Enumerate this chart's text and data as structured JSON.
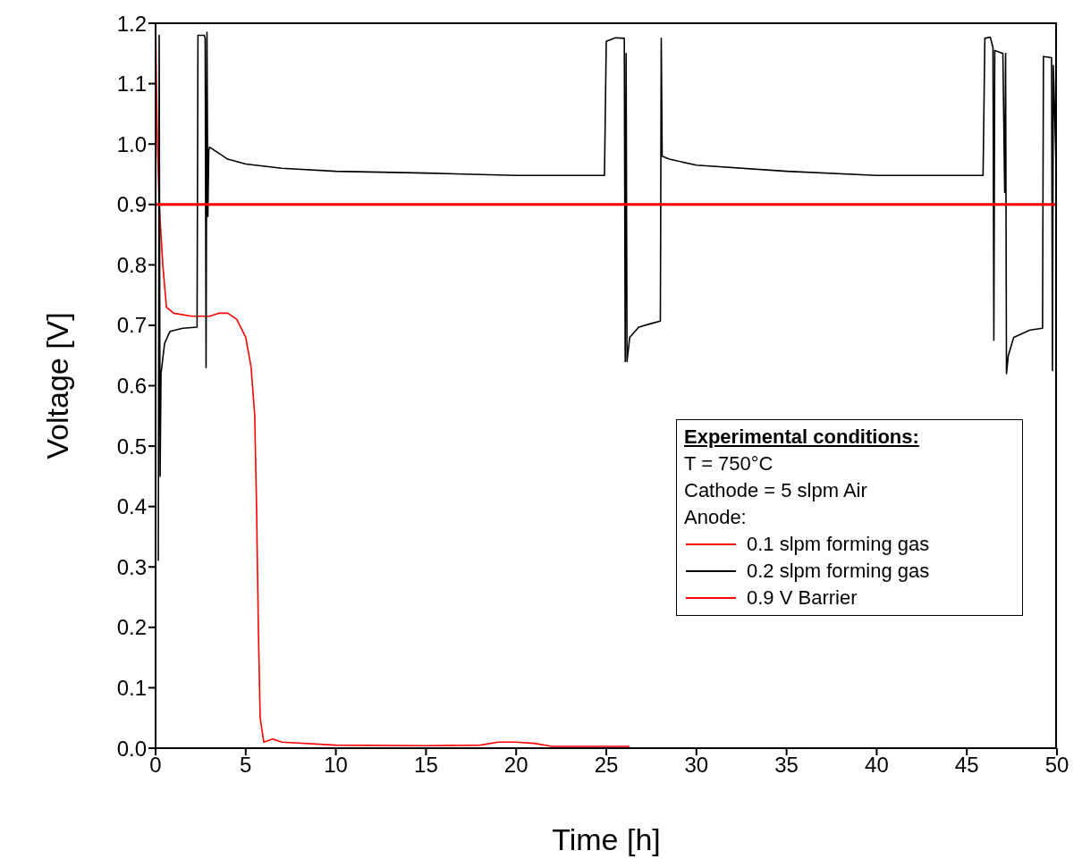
{
  "chart_data": {
    "type": "line",
    "xlabel": "Time [h]",
    "ylabel": "Voltage [V]",
    "legend_title": "Experimental conditions:",
    "annotations": [
      "T = 750°C",
      "Cathode = 5 slpm Air",
      "Anode:"
    ],
    "xlim": [
      0,
      50
    ],
    "xticks": [
      0,
      5,
      10,
      15,
      20,
      25,
      30,
      35,
      40,
      45,
      50
    ],
    "ylim": [
      0,
      1.2
    ],
    "yticks": [
      {
        "value": 0,
        "label": "0.0"
      },
      0.1,
      0.2,
      0.3,
      0.4,
      0.5,
      0.6,
      0.7,
      0.8,
      0.9,
      {
        "value": 1,
        "label": "1.0"
      },
      1.1,
      1.2
    ],
    "legend": "right",
    "marker": "none",
    "line_style": "solid",
    "series": [
      {
        "name": "0.1 slpm forming gas",
        "color": "#ff0000",
        "x": [
          0,
          0.1,
          0.2,
          0.4,
          0.6,
          1,
          2,
          3,
          3.5,
          4,
          4.5,
          5,
          5.3,
          5.5,
          5.6,
          5.7,
          5.8,
          6,
          6.5,
          7,
          10,
          15,
          18,
          19,
          20,
          21,
          22,
          26.3
        ],
        "values": [
          1.2,
          1.0,
          0.9,
          0.8,
          0.73,
          0.72,
          0.715,
          0.715,
          0.72,
          0.72,
          0.71,
          0.68,
          0.63,
          0.55,
          0.4,
          0.2,
          0.05,
          0.01,
          0.015,
          0.01,
          0.005,
          0.004,
          0.005,
          0.01,
          0.01,
          0.008,
          0.003,
          0.003
        ]
      },
      {
        "name": "0.2 slpm forming gas",
        "color": "#000000",
        "x": [
          0.15,
          0.2,
          0.25,
          0.3,
          0.5,
          0.8,
          1.5,
          2.3,
          2.35,
          2.7,
          2.75,
          2.8,
          2.85,
          2.9,
          2.95,
          3,
          4,
          5,
          7,
          10,
          15,
          20,
          24.9,
          25,
          25.5,
          26,
          26.05,
          26.1,
          26.15,
          26.3,
          26.8,
          27.5,
          28,
          28.05,
          28.1,
          28.5,
          30,
          35,
          40,
          45.9,
          46,
          46.3,
          46.45,
          46.5,
          46.55,
          47,
          47.1,
          47.15,
          47.2,
          47.3,
          47.6,
          48.5,
          49.2,
          49.25,
          49.7,
          49.75,
          49.8,
          50
        ],
        "values": [
          0.31,
          1.18,
          0.45,
          0.62,
          0.67,
          0.69,
          0.695,
          0.697,
          1.18,
          1.18,
          1.175,
          0.63,
          1.185,
          0.88,
          0.99,
          0.995,
          0.975,
          0.967,
          0.96,
          0.955,
          0.952,
          0.948,
          0.948,
          1.17,
          1.176,
          1.175,
          0.64,
          1.15,
          0.64,
          0.68,
          0.697,
          0.703,
          0.707,
          1.175,
          0.98,
          0.975,
          0.965,
          0.955,
          0.948,
          0.948,
          1.175,
          1.177,
          1.16,
          0.675,
          1.155,
          1.15,
          0.92,
          1.15,
          0.62,
          0.65,
          0.68,
          0.692,
          0.695,
          1.145,
          1.143,
          0.625,
          1.13,
          0.91
        ]
      },
      {
        "name": "0.9 V Barrier",
        "color": "#ff0000",
        "x": [
          0,
          50
        ],
        "values": [
          0.9,
          0.9
        ]
      }
    ]
  }
}
